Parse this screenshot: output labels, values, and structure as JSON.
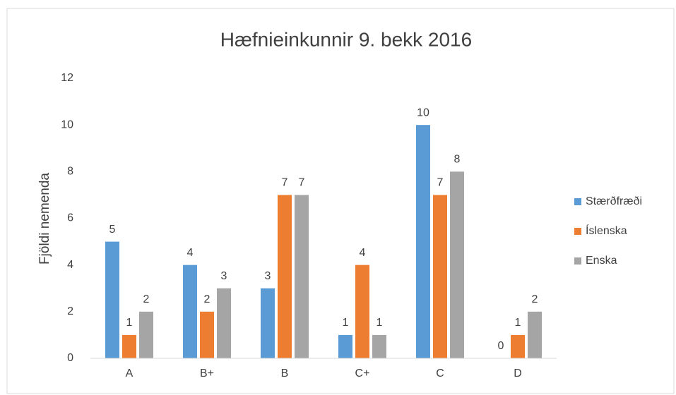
{
  "chart_data": {
    "type": "bar",
    "title": "Hæfnieinkunnir 9. bekk 2016",
    "y_label": "Fjöldi nemenda",
    "categories": [
      "A",
      "B+",
      "B",
      "C+",
      "C",
      "D"
    ],
    "series": [
      {
        "name": "Stærðfræði",
        "color": "#5b9bd5",
        "values": [
          5,
          4,
          3,
          1,
          10,
          0
        ]
      },
      {
        "name": "Íslenska",
        "color": "#ed7d31",
        "values": [
          1,
          2,
          7,
          4,
          7,
          1
        ]
      },
      {
        "name": "Enska",
        "color": "#a5a5a5",
        "values": [
          2,
          3,
          7,
          1,
          8,
          2
        ]
      }
    ],
    "ylim": [
      0,
      12
    ],
    "yticks": [
      0,
      2,
      4,
      6,
      8,
      10,
      12
    ],
    "grid": false,
    "legend": "right"
  }
}
